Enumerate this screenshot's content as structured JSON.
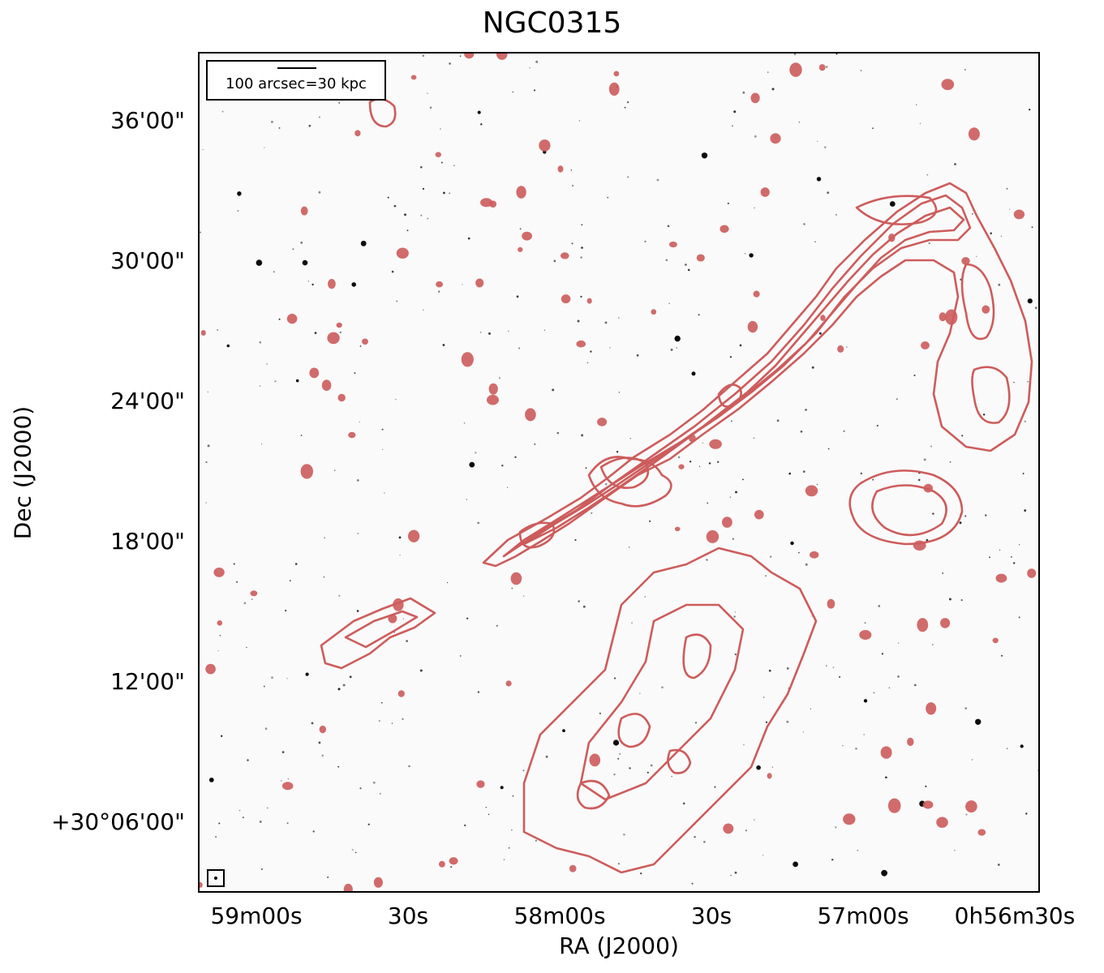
{
  "title": "NGC0315",
  "axes": {
    "xlabel": "RA (J2000)",
    "ylabel": "Dec (J2000)",
    "xticks": [
      "59m00s",
      "30s",
      "58m00s",
      "30s",
      "57m00s",
      "0h56m30s"
    ],
    "yticks": [
      "36'00\"",
      "30'00\"",
      "24'00\"",
      "18'00\"",
      "12'00\"",
      "+30°06'00\""
    ]
  },
  "scale_legend": "100 arcsec=30 kpc",
  "colors": {
    "contour": "#cd5c5c",
    "background": "#fafafa",
    "stars": "#000000",
    "frame": "#000000"
  }
}
